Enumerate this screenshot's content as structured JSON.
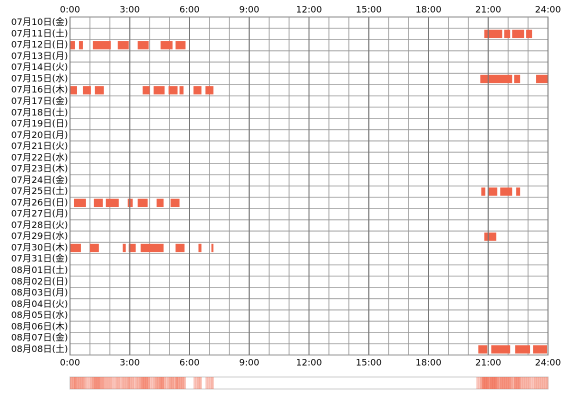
{
  "chart_data": {
    "type": "timeline",
    "color": "#f0654a",
    "xlim": [
      0,
      24
    ],
    "grid_step": 1,
    "xticks": [
      {
        "value": 0,
        "label": "0:00"
      },
      {
        "value": 3,
        "label": "3:00"
      },
      {
        "value": 6,
        "label": "6:00"
      },
      {
        "value": 9,
        "label": "9:00"
      },
      {
        "value": 12,
        "label": "12:00"
      },
      {
        "value": 15,
        "label": "15:00"
      },
      {
        "value": 18,
        "label": "18:00"
      },
      {
        "value": 21,
        "label": "21:00"
      },
      {
        "value": 24,
        "label": "24:00"
      }
    ],
    "rows": [
      {
        "label": "07月10日(金)",
        "segments": []
      },
      {
        "label": "07月11日(土)",
        "segments": [
          [
            20.8,
            21.7
          ],
          [
            21.8,
            22.1
          ],
          [
            22.2,
            22.8
          ],
          [
            22.9,
            23.2
          ]
        ]
      },
      {
        "label": "07月12日(日)",
        "segments": [
          [
            0,
            0.25
          ],
          [
            0.45,
            0.65
          ],
          [
            1.15,
            2.05
          ],
          [
            2.4,
            2.95
          ],
          [
            3.4,
            3.95
          ],
          [
            4.55,
            5.15
          ],
          [
            5.3,
            5.8
          ]
        ]
      },
      {
        "label": "07月13日(月)",
        "segments": []
      },
      {
        "label": "07月14日(火)",
        "segments": []
      },
      {
        "label": "07月15日(水)",
        "segments": [
          [
            20.6,
            22.2
          ],
          [
            22.3,
            22.6
          ],
          [
            23.4,
            24
          ]
        ]
      },
      {
        "label": "07月16日(木)",
        "segments": [
          [
            0,
            0.35
          ],
          [
            0.65,
            1.05
          ],
          [
            1.25,
            1.7
          ],
          [
            3.65,
            4.0
          ],
          [
            4.2,
            4.75
          ],
          [
            4.95,
            5.4
          ],
          [
            5.5,
            5.7
          ],
          [
            6.2,
            6.6
          ],
          [
            6.8,
            7.2
          ]
        ]
      },
      {
        "label": "07月17日(金)",
        "segments": []
      },
      {
        "label": "07月18日(土)",
        "segments": []
      },
      {
        "label": "07月19日(日)",
        "segments": []
      },
      {
        "label": "07月20日(月)",
        "segments": []
      },
      {
        "label": "07月21日(火)",
        "segments": []
      },
      {
        "label": "07月22日(水)",
        "segments": []
      },
      {
        "label": "07月23日(木)",
        "segments": []
      },
      {
        "label": "07月24日(金)",
        "segments": []
      },
      {
        "label": "07月25日(土)",
        "segments": [
          [
            20.65,
            20.85
          ],
          [
            21.0,
            21.45
          ],
          [
            21.6,
            22.2
          ],
          [
            22.4,
            22.6
          ]
        ]
      },
      {
        "label": "07月26日(日)",
        "segments": [
          [
            0.2,
            0.8
          ],
          [
            1.2,
            1.65
          ],
          [
            1.8,
            2.45
          ],
          [
            2.9,
            3.15
          ],
          [
            3.4,
            3.9
          ],
          [
            4.35,
            4.7
          ],
          [
            5.05,
            5.5
          ]
        ]
      },
      {
        "label": "07月27日(月)",
        "segments": []
      },
      {
        "label": "07月28日(火)",
        "segments": []
      },
      {
        "label": "07月29日(水)",
        "segments": [
          [
            20.8,
            21.4
          ]
        ]
      },
      {
        "label": "07月30日(木)",
        "segments": [
          [
            0,
            0.55
          ],
          [
            1.0,
            1.45
          ],
          [
            2.65,
            2.8
          ],
          [
            2.95,
            3.3
          ],
          [
            3.55,
            4.7
          ],
          [
            5.3,
            5.75
          ],
          [
            6.45,
            6.6
          ],
          [
            7.1,
            7.2
          ]
        ]
      },
      {
        "label": "07月31日(金)",
        "segments": []
      },
      {
        "label": "08月01日(土)",
        "segments": []
      },
      {
        "label": "08月02日(日)",
        "segments": []
      },
      {
        "label": "08月03日(月)",
        "segments": []
      },
      {
        "label": "08月04日(火)",
        "segments": []
      },
      {
        "label": "08月05日(水)",
        "segments": []
      },
      {
        "label": "08月06日(木)",
        "segments": []
      },
      {
        "label": "08月07日(金)",
        "segments": []
      },
      {
        "label": "08月08日(土)",
        "segments": [
          [
            20.5,
            20.95
          ],
          [
            21.15,
            22.1
          ],
          [
            22.35,
            23.1
          ],
          [
            23.25,
            23.95
          ]
        ]
      }
    ]
  }
}
